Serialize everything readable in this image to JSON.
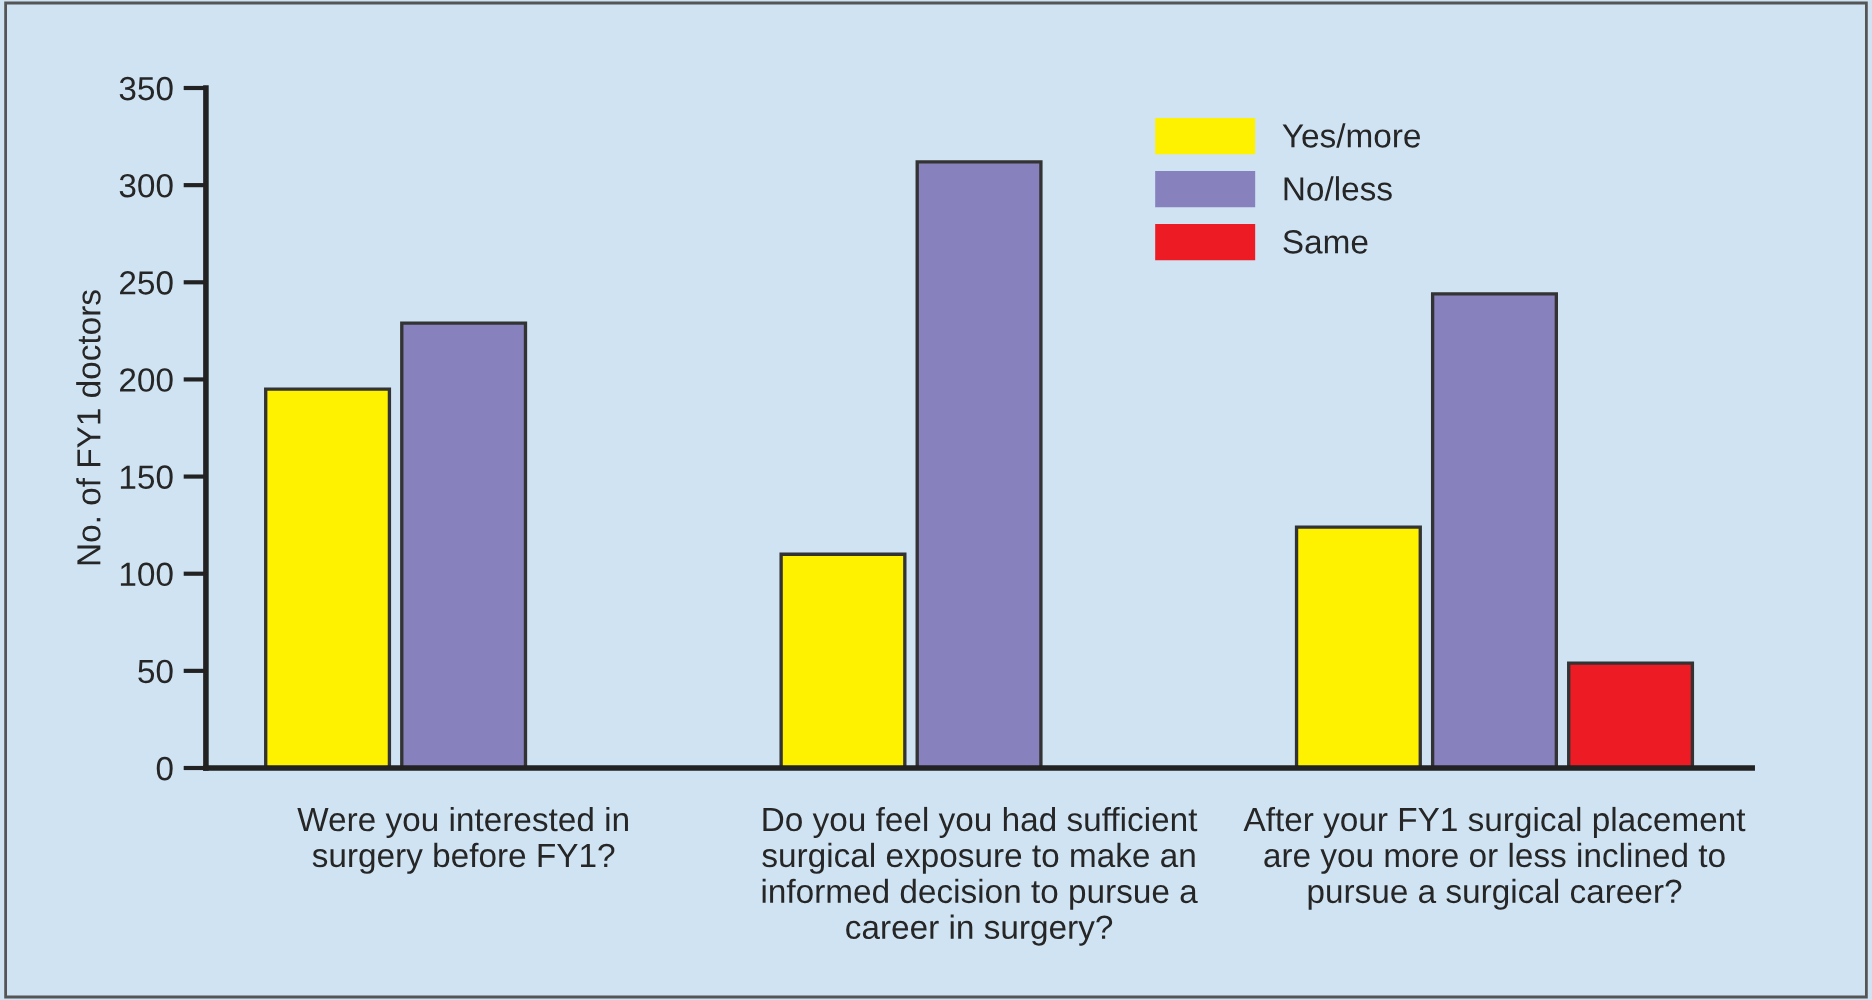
{
  "chart_data": {
    "type": "bar",
    "ylabel": "No. of FY1 doctors",
    "categories": [
      "Were you interested in\nsurgery before FY1?",
      "Do you feel you had sufficient\nsurgical exposure to make an\ninformed decision to pursue a\ncareer in surgery?",
      "After your FY1 surgical placement\nare you more or less inclined to\npursue a surgical career?"
    ],
    "series": [
      {
        "name": "Yes/more",
        "color": "#fff200",
        "values": [
          195,
          110,
          124
        ]
      },
      {
        "name": "No/less",
        "color": "#8782bd",
        "values": [
          229,
          312,
          244
        ]
      },
      {
        "name": "Same",
        "color": "#ed1c24",
        "values": [
          null,
          null,
          54
        ]
      }
    ],
    "ylim": [
      0,
      350
    ],
    "yticks": [
      0,
      50,
      100,
      150,
      200,
      250,
      300,
      350
    ],
    "grid": false,
    "legend": "top"
  }
}
